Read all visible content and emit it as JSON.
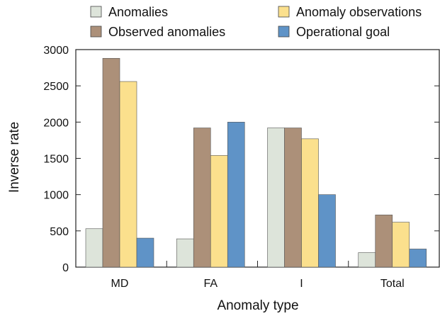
{
  "chart_data": {
    "type": "bar",
    "title": "",
    "xlabel": "Anomaly type",
    "ylabel": "Inverse rate",
    "categories": [
      "MD",
      "FA",
      "I",
      "Total"
    ],
    "ylim": [
      0,
      3000
    ],
    "yticks": [
      0,
      500,
      1000,
      1500,
      2000,
      2500,
      3000
    ],
    "grid": false,
    "legend_position": "top",
    "series": [
      {
        "name": "Anomalies",
        "color": "#dde4da",
        "values": [
          530,
          390,
          1920,
          200
        ]
      },
      {
        "name": "Observed anomalies",
        "color": "#ac9079",
        "values": [
          2880,
          1920,
          1920,
          720
        ]
      },
      {
        "name": "Anomaly observations",
        "color": "#fbe08d",
        "values": [
          2560,
          1540,
          1770,
          620
        ]
      },
      {
        "name": "Operational goal",
        "color": "#5f93c7",
        "values": [
          400,
          2000,
          1000,
          250
        ]
      }
    ]
  }
}
